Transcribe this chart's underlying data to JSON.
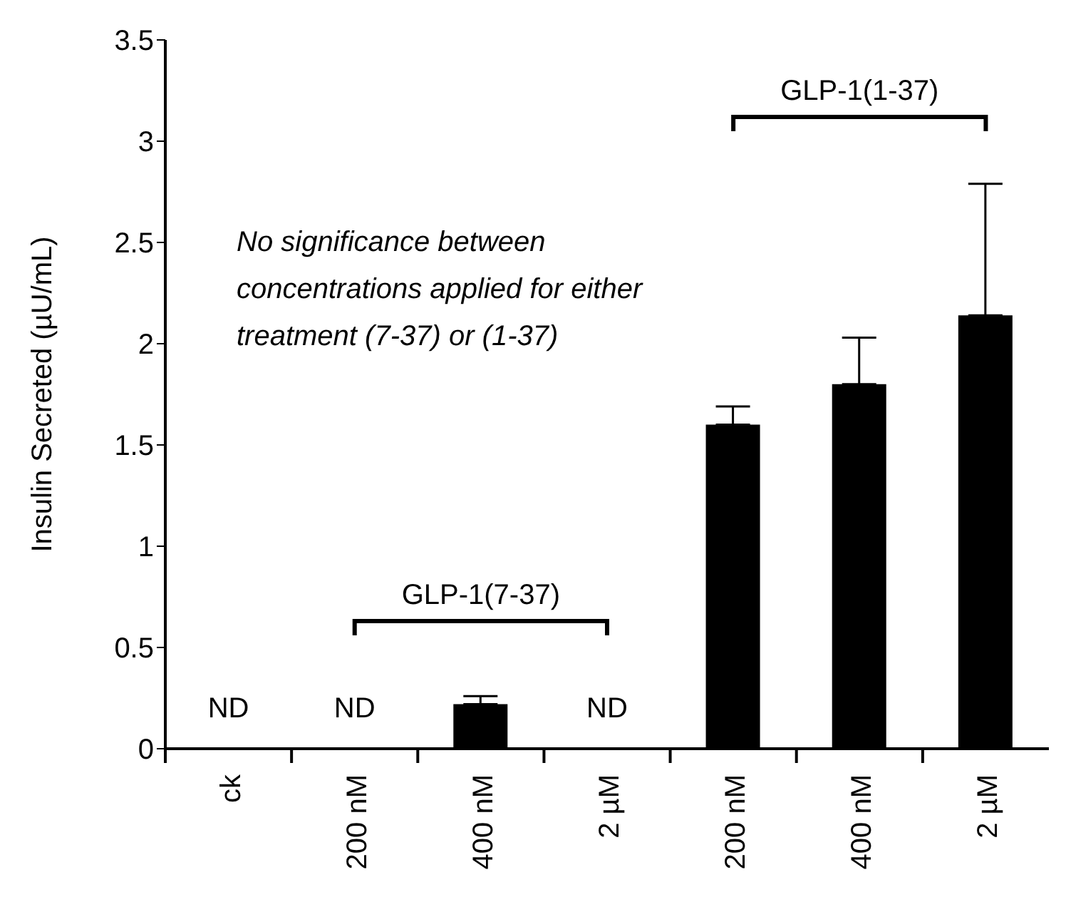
{
  "chart_data": {
    "type": "bar",
    "ylabel": "Insulin Secreted (µU/mL)",
    "categories": [
      "ck",
      "200 nM",
      "400 nM",
      "2 µM",
      "200 nM",
      "400 nM",
      "2 µM"
    ],
    "values": [
      null,
      null,
      0.22,
      null,
      1.6,
      1.8,
      2.14
    ],
    "errors": [
      null,
      null,
      [
        0.22,
        0.26
      ],
      null,
      [
        1.6,
        1.69
      ],
      [
        1.8,
        2.03
      ],
      [
        2.14,
        2.79
      ]
    ],
    "value_labels": [
      "ND",
      "ND",
      null,
      "ND",
      null,
      null,
      null
    ],
    "color": "#000000",
    "ylim": [
      0,
      3.5
    ],
    "yticks": [
      0,
      0.5,
      1,
      1.5,
      2,
      2.5,
      3,
      3.5
    ],
    "grid": false,
    "legend": false,
    "annotations": [
      "GLP-1(7-37)",
      "GLP-1(1-37)",
      "No significance between concentrations applied for either treatment (7-37) or (1-37)"
    ]
  }
}
